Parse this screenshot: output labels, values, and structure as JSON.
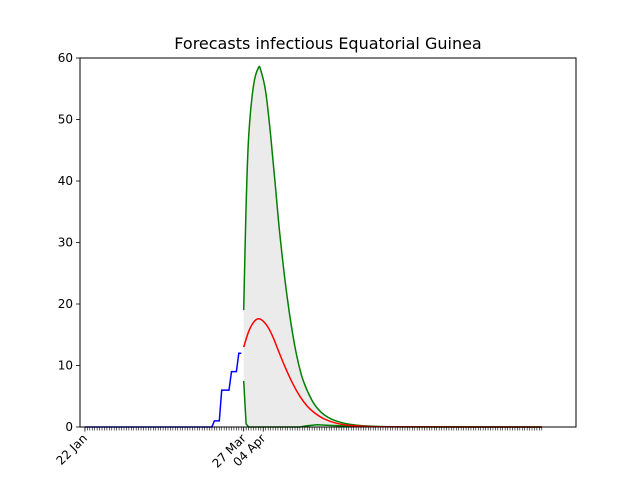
{
  "chart_data": {
    "type": "line",
    "title": "Forecasts infectious Equatorial Guinea",
    "xlabel": "",
    "ylabel": "",
    "x_axis": {
      "type": "date",
      "start": "2020-01-22",
      "end": "2020-07-27"
    },
    "ylim": [
      0,
      60
    ],
    "yticks": [
      0,
      10,
      20,
      30,
      40,
      50,
      60
    ],
    "xtick_labels": [
      {
        "date": "2020-01-22",
        "label": "22 Jan"
      },
      {
        "date": "2020-03-27",
        "label": "27 Mar"
      },
      {
        "date": "2020-04-04",
        "label": "04 Apr"
      }
    ],
    "minor_ticks": "daily",
    "grid": false,
    "legend": "none",
    "colors": {
      "observed": "#0000ff",
      "forecast": "#ff0000",
      "bounds": "#008000",
      "band": "#ebebeb"
    },
    "series": [
      {
        "role": "observed",
        "points": [
          [
            "2020-01-22",
            0
          ],
          [
            "2020-03-14",
            0
          ],
          [
            "2020-03-15",
            1
          ],
          [
            "2020-03-17",
            1
          ],
          [
            "2020-03-18",
            6
          ],
          [
            "2020-03-21",
            6
          ],
          [
            "2020-03-22",
            9
          ],
          [
            "2020-03-24",
            9
          ],
          [
            "2020-03-25",
            12
          ],
          [
            "2020-03-26",
            12
          ]
        ]
      },
      {
        "role": "forecast",
        "points": [
          [
            "2020-03-27",
            13.0
          ],
          [
            "2020-03-29",
            15.5
          ],
          [
            "2020-03-31",
            17.0
          ],
          [
            "2020-04-02",
            17.6
          ],
          [
            "2020-04-04",
            17.2
          ],
          [
            "2020-04-06",
            16.2
          ],
          [
            "2020-04-08",
            14.6
          ],
          [
            "2020-04-10",
            12.6
          ],
          [
            "2020-04-13",
            9.7
          ],
          [
            "2020-04-16",
            7.1
          ],
          [
            "2020-04-19",
            5.0
          ],
          [
            "2020-04-22",
            3.4
          ],
          [
            "2020-04-25",
            2.3
          ],
          [
            "2020-04-29",
            1.3
          ],
          [
            "2020-05-04",
            0.6
          ],
          [
            "2020-05-10",
            0.25
          ],
          [
            "2020-05-20",
            0.05
          ],
          [
            "2020-06-05",
            0.01
          ],
          [
            "2020-07-27",
            0
          ]
        ]
      },
      {
        "role": "upper_bound",
        "points": [
          [
            "2020-03-27",
            19.0
          ],
          [
            "2020-03-28",
            36.0
          ],
          [
            "2020-03-29",
            47.0
          ],
          [
            "2020-03-31",
            55.5
          ],
          [
            "2020-04-02",
            58.4
          ],
          [
            "2020-04-03",
            58.0
          ],
          [
            "2020-04-05",
            54.5
          ],
          [
            "2020-04-07",
            47.5
          ],
          [
            "2020-04-09",
            39.0
          ],
          [
            "2020-04-11",
            30.5
          ],
          [
            "2020-04-14",
            20.5
          ],
          [
            "2020-04-17",
            13.0
          ],
          [
            "2020-04-20",
            8.0
          ],
          [
            "2020-04-24",
            4.3
          ],
          [
            "2020-04-28",
            2.3
          ],
          [
            "2020-05-03",
            1.1
          ],
          [
            "2020-05-10",
            0.4
          ],
          [
            "2020-05-20",
            0.1
          ],
          [
            "2020-06-05",
            0.02
          ],
          [
            "2020-07-27",
            0
          ]
        ]
      },
      {
        "role": "lower_bound",
        "points": [
          [
            "2020-03-27",
            7.5
          ],
          [
            "2020-03-28",
            0.5
          ],
          [
            "2020-03-29",
            0
          ],
          [
            "2020-04-19",
            0
          ],
          [
            "2020-04-22",
            0.2
          ],
          [
            "2020-04-26",
            0.35
          ],
          [
            "2020-04-30",
            0.3
          ],
          [
            "2020-05-05",
            0.2
          ],
          [
            "2020-05-12",
            0.1
          ],
          [
            "2020-05-25",
            0.03
          ],
          [
            "2020-07-27",
            0
          ]
        ]
      }
    ]
  }
}
